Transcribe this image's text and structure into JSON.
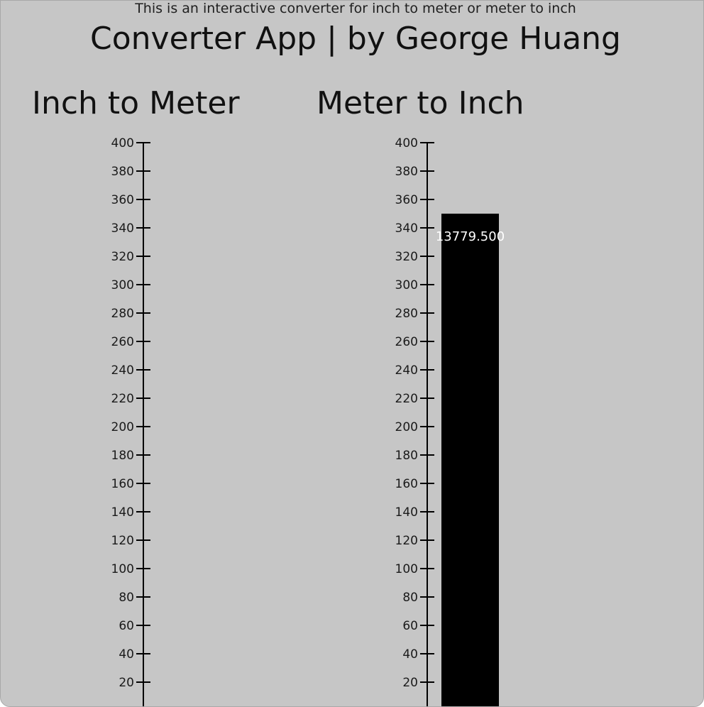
{
  "header": {
    "subtitle": "This is an interactive converter for inch to meter or meter to inch",
    "title": "Converter App | by George Huang"
  },
  "colors": {
    "background": "#c6c6c6",
    "bar": "#000000",
    "bar_label": "#ffffff",
    "axis": "#000000"
  },
  "chart_data": [
    {
      "type": "bar",
      "title": "Inch to Meter",
      "ylim": [
        0,
        400
      ],
      "yticks": [
        20,
        40,
        60,
        80,
        100,
        120,
        140,
        160,
        180,
        200,
        220,
        240,
        260,
        280,
        300,
        320,
        340,
        360,
        380,
        400
      ],
      "bars": []
    },
    {
      "type": "bar",
      "title": "Meter to Inch",
      "ylim": [
        0,
        400
      ],
      "yticks": [
        20,
        40,
        60,
        80,
        100,
        120,
        140,
        160,
        180,
        200,
        220,
        240,
        260,
        280,
        300,
        320,
        340,
        360,
        380,
        400
      ],
      "bars": [
        {
          "value": 350,
          "label": "13779.500"
        }
      ]
    }
  ]
}
